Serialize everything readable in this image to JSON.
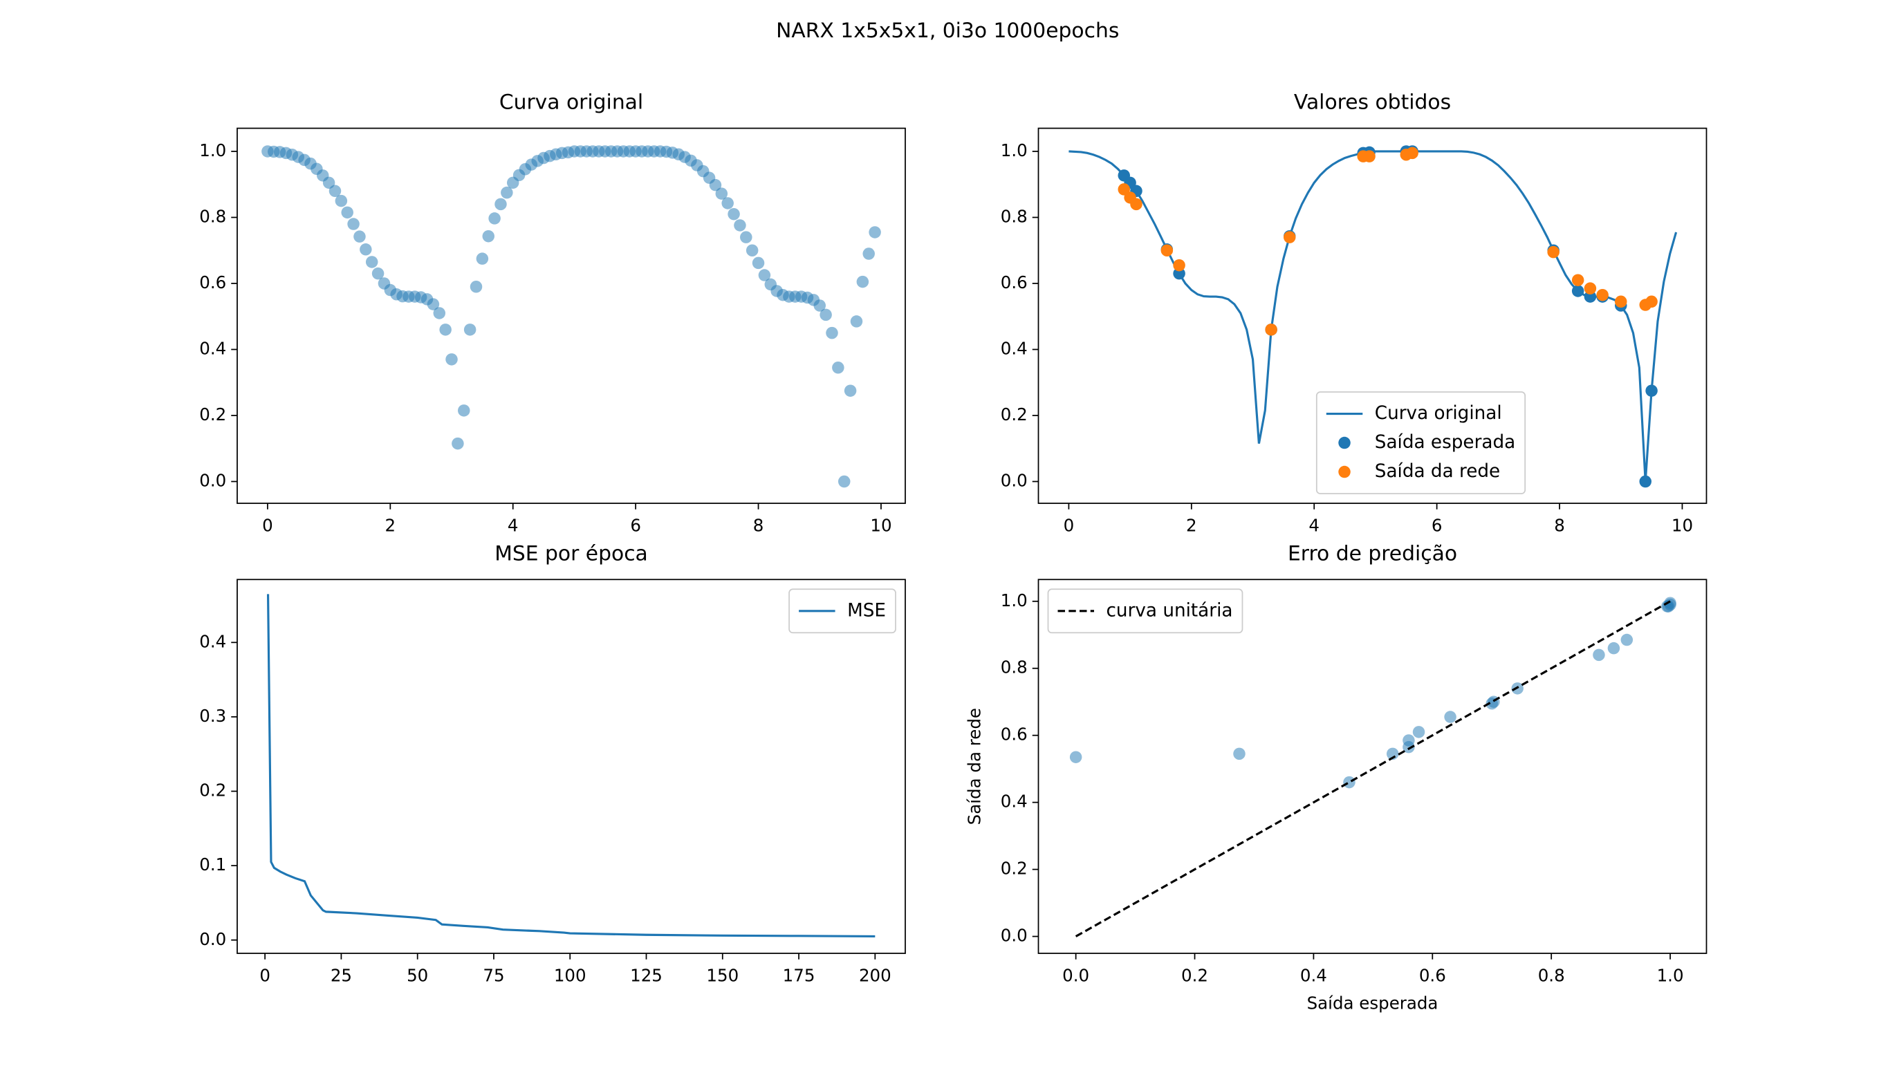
{
  "title": "NARX 1x5x5x1, 0i3o 1000epochs",
  "chart_data": [
    {
      "type": "scatter",
      "title": "Curva original",
      "xlim": [
        -0.495,
        10.395
      ],
      "ylim": [
        -0.066,
        1.07
      ],
      "xticks": [
        0,
        2,
        4,
        6,
        8,
        10
      ],
      "yticks": [
        {
          "value": 0,
          "label": "0.0"
        },
        {
          "value": 0.2,
          "label": "0.2"
        },
        {
          "value": 0.4,
          "label": "0.4"
        },
        {
          "value": 0.6,
          "label": "0.6"
        },
        {
          "value": 0.8,
          "label": "0.8"
        },
        {
          "value": 1.0,
          "label": "1.0"
        }
      ],
      "series": [
        {
          "type": "scatter",
          "color": "#1f77b4",
          "alpha": 0.5,
          "x": [
            0,
            0.1,
            0.2,
            0.3,
            0.4,
            0.5,
            0.6,
            0.7,
            0.8,
            0.9,
            1.0,
            1.1,
            1.2,
            1.3,
            1.4,
            1.5,
            1.6,
            1.7,
            1.8,
            1.9,
            2.0,
            2.1,
            2.2,
            2.3,
            2.4,
            2.5,
            2.6,
            2.7,
            2.8,
            2.9,
            3.0,
            3.1,
            3.2,
            3.3,
            3.4,
            3.5,
            3.6,
            3.7,
            3.8,
            3.9,
            4.0,
            4.1,
            4.2,
            4.3,
            4.4,
            4.5,
            4.6,
            4.7,
            4.8,
            4.9,
            5.0,
            5.1,
            5.2,
            5.3,
            5.4,
            5.5,
            5.6,
            5.7,
            5.8,
            5.9,
            6.0,
            6.1,
            6.2,
            6.3,
            6.4,
            6.5,
            6.6,
            6.7,
            6.8,
            6.9,
            7.0,
            7.1,
            7.2,
            7.3,
            7.4,
            7.5,
            7.6,
            7.7,
            7.8,
            7.9,
            8.0,
            8.1,
            8.2,
            8.3,
            8.4,
            8.5,
            8.6,
            8.7,
            8.8,
            8.9,
            9.0,
            9.1,
            9.2,
            9.3,
            9.4,
            9.5,
            9.6,
            9.7,
            9.8,
            9.9
          ],
          "values": [
            1.0,
            0.999,
            0.998,
            0.995,
            0.99,
            0.983,
            0.974,
            0.963,
            0.947,
            0.927,
            0.905,
            0.88,
            0.85,
            0.815,
            0.78,
            0.742,
            0.703,
            0.665,
            0.63,
            0.6,
            0.58,
            0.567,
            0.561,
            0.56,
            0.56,
            0.558,
            0.552,
            0.537,
            0.51,
            0.46,
            0.37,
            0.115,
            0.215,
            0.46,
            0.59,
            0.675,
            0.743,
            0.797,
            0.84,
            0.875,
            0.905,
            0.928,
            0.946,
            0.96,
            0.971,
            0.98,
            0.986,
            0.991,
            0.995,
            0.997,
            1.0,
            1.0,
            1.0,
            1.0,
            1.0,
            1.0,
            1.0,
            1.0,
            1.0,
            1.0,
            1.0,
            1.0,
            1.0,
            1.0,
            1.0,
            0.999,
            0.996,
            0.991,
            0.983,
            0.972,
            0.958,
            0.94,
            0.92,
            0.898,
            0.872,
            0.843,
            0.81,
            0.776,
            0.74,
            0.7,
            0.662,
            0.625,
            0.597,
            0.577,
            0.565,
            0.56,
            0.56,
            0.56,
            0.557,
            0.55,
            0.533,
            0.505,
            0.45,
            0.345,
            0.0,
            0.275,
            0.485,
            0.605,
            0.69,
            0.755
          ]
        }
      ]
    },
    {
      "type": "mixed",
      "title": "Valores obtidos",
      "legend": "lower center",
      "xlim": [
        -0.495,
        10.395
      ],
      "ylim": [
        -0.066,
        1.07
      ],
      "xticks": [
        0,
        2,
        4,
        6,
        8,
        10
      ],
      "yticks": [
        {
          "value": 0,
          "label": "0.0"
        },
        {
          "value": 0.2,
          "label": "0.2"
        },
        {
          "value": 0.4,
          "label": "0.4"
        },
        {
          "value": 0.6,
          "label": "0.6"
        },
        {
          "value": 0.8,
          "label": "0.8"
        },
        {
          "value": 1.0,
          "label": "1.0"
        }
      ],
      "series": [
        {
          "name": "Curva original",
          "type": "line",
          "color": "#1f77b4",
          "x": [
            0,
            0.1,
            0.2,
            0.3,
            0.4,
            0.5,
            0.6,
            0.7,
            0.8,
            0.9,
            1.0,
            1.1,
            1.2,
            1.3,
            1.4,
            1.5,
            1.6,
            1.7,
            1.8,
            1.9,
            2.0,
            2.1,
            2.2,
            2.3,
            2.4,
            2.5,
            2.6,
            2.7,
            2.8,
            2.9,
            3.0,
            3.1,
            3.2,
            3.3,
            3.4,
            3.5,
            3.6,
            3.7,
            3.8,
            3.9,
            4.0,
            4.1,
            4.2,
            4.3,
            4.4,
            4.5,
            4.6,
            4.7,
            4.8,
            4.9,
            5.0,
            5.1,
            5.2,
            5.3,
            5.4,
            5.5,
            5.6,
            5.7,
            5.8,
            5.9,
            6.0,
            6.1,
            6.2,
            6.3,
            6.4,
            6.5,
            6.6,
            6.7,
            6.8,
            6.9,
            7.0,
            7.1,
            7.2,
            7.3,
            7.4,
            7.5,
            7.6,
            7.7,
            7.8,
            7.9,
            8.0,
            8.1,
            8.2,
            8.3,
            8.4,
            8.5,
            8.6,
            8.7,
            8.8,
            8.9,
            9.0,
            9.1,
            9.2,
            9.3,
            9.4,
            9.5,
            9.6,
            9.7,
            9.8,
            9.9
          ],
          "values": [
            1.0,
            0.999,
            0.998,
            0.995,
            0.99,
            0.983,
            0.974,
            0.963,
            0.947,
            0.927,
            0.905,
            0.88,
            0.85,
            0.815,
            0.78,
            0.742,
            0.703,
            0.665,
            0.63,
            0.6,
            0.58,
            0.567,
            0.561,
            0.56,
            0.56,
            0.558,
            0.552,
            0.537,
            0.51,
            0.46,
            0.37,
            0.115,
            0.215,
            0.46,
            0.59,
            0.675,
            0.743,
            0.797,
            0.84,
            0.875,
            0.905,
            0.928,
            0.946,
            0.96,
            0.971,
            0.98,
            0.986,
            0.991,
            0.995,
            0.997,
            1.0,
            1.0,
            1.0,
            1.0,
            1.0,
            1.0,
            1.0,
            1.0,
            1.0,
            1.0,
            1.0,
            1.0,
            1.0,
            1.0,
            1.0,
            0.999,
            0.996,
            0.991,
            0.983,
            0.972,
            0.958,
            0.94,
            0.92,
            0.898,
            0.872,
            0.843,
            0.81,
            0.776,
            0.74,
            0.7,
            0.662,
            0.625,
            0.597,
            0.577,
            0.565,
            0.56,
            0.56,
            0.56,
            0.557,
            0.55,
            0.533,
            0.505,
            0.45,
            0.345,
            0.0,
            0.275,
            0.485,
            0.605,
            0.69,
            0.755
          ]
        },
        {
          "name": "Saída esperada",
          "type": "scatter",
          "color": "#1f77b4",
          "x": [
            0.9,
            1.0,
            1.1,
            1.6,
            1.8,
            3.3,
            3.6,
            4.8,
            4.9,
            5.5,
            5.6,
            7.9,
            8.3,
            8.5,
            8.7,
            9.0,
            9.4,
            9.5
          ],
          "values": [
            0.927,
            0.905,
            0.88,
            0.703,
            0.63,
            0.46,
            0.743,
            0.995,
            0.997,
            1.0,
            1.0,
            0.7,
            0.577,
            0.56,
            0.56,
            0.533,
            0.0,
            0.275
          ]
        },
        {
          "name": "Saída da rede",
          "type": "scatter",
          "color": "#ff7f0e",
          "x": [
            0.9,
            1.0,
            1.1,
            1.6,
            1.8,
            3.3,
            3.6,
            4.8,
            4.9,
            5.5,
            5.6,
            7.9,
            8.3,
            8.5,
            8.7,
            9.0,
            9.4,
            9.5
          ],
          "values": [
            0.885,
            0.86,
            0.84,
            0.7,
            0.655,
            0.46,
            0.74,
            0.985,
            0.985,
            0.99,
            0.995,
            0.695,
            0.61,
            0.585,
            0.565,
            0.545,
            0.535,
            0.545
          ]
        }
      ]
    },
    {
      "type": "line",
      "title": "MSE por época",
      "legend": "upper right",
      "xlim": [
        -9.1,
        209.9
      ],
      "ylim": [
        -0.0179,
        0.4846
      ],
      "xticks": [
        0,
        25,
        50,
        75,
        100,
        125,
        150,
        175,
        200
      ],
      "yticks": [
        {
          "value": 0,
          "label": "0.0"
        },
        {
          "value": 0.1,
          "label": "0.1"
        },
        {
          "value": 0.2,
          "label": "0.2"
        },
        {
          "value": 0.3,
          "label": "0.3"
        },
        {
          "value": 0.4,
          "label": "0.4"
        }
      ],
      "series": [
        {
          "name": "MSE",
          "type": "line",
          "color": "#1f77b4",
          "x": [
            1,
            2,
            3,
            5,
            7,
            10,
            13,
            15,
            17,
            19,
            20,
            30,
            40,
            50,
            56,
            58,
            65,
            73,
            78,
            90,
            98,
            100,
            125,
            150,
            175,
            200
          ],
          "values": [
            0.465,
            0.105,
            0.097,
            0.092,
            0.088,
            0.083,
            0.079,
            0.06,
            0.05,
            0.04,
            0.038,
            0.036,
            0.033,
            0.03,
            0.027,
            0.021,
            0.019,
            0.017,
            0.014,
            0.012,
            0.01,
            0.009,
            0.007,
            0.006,
            0.0055,
            0.005
          ]
        }
      ]
    },
    {
      "type": "mixed",
      "title": "Erro de predição",
      "legend": "upper left",
      "xlabel": "Saída esperada",
      "ylabel": "Saída da rede",
      "xlim": [
        -0.063,
        1.061
      ],
      "ylim": [
        -0.0505,
        1.065
      ],
      "xticks": [
        {
          "value": 0,
          "label": "0.0"
        },
        {
          "value": 0.2,
          "label": "0.2"
        },
        {
          "value": 0.4,
          "label": "0.4"
        },
        {
          "value": 0.6,
          "label": "0.6"
        },
        {
          "value": 0.8,
          "label": "0.8"
        },
        {
          "value": 1.0,
          "label": "1.0"
        }
      ],
      "yticks": [
        {
          "value": 0,
          "label": "0.0"
        },
        {
          "value": 0.2,
          "label": "0.2"
        },
        {
          "value": 0.4,
          "label": "0.4"
        },
        {
          "value": 0.6,
          "label": "0.6"
        },
        {
          "value": 0.8,
          "label": "0.8"
        },
        {
          "value": 1.0,
          "label": "1.0"
        }
      ],
      "series": [
        {
          "type": "scatter",
          "color": "#1f77b4",
          "alpha": 0.5,
          "x": [
            0.927,
            0.905,
            0.88,
            0.703,
            0.63,
            0.46,
            0.743,
            0.995,
            0.997,
            1.0,
            1.0,
            0.7,
            0.577,
            0.56,
            0.56,
            0.533,
            0.0,
            0.275
          ],
          "values": [
            0.885,
            0.86,
            0.84,
            0.7,
            0.655,
            0.46,
            0.74,
            0.985,
            0.985,
            0.99,
            0.995,
            0.695,
            0.61,
            0.585,
            0.565,
            0.545,
            0.535,
            0.545
          ]
        },
        {
          "name": "curva unitária",
          "type": "line",
          "color": "#000000",
          "dashed": true,
          "x": [
            0,
            1
          ],
          "values": [
            0,
            1
          ]
        }
      ]
    }
  ]
}
